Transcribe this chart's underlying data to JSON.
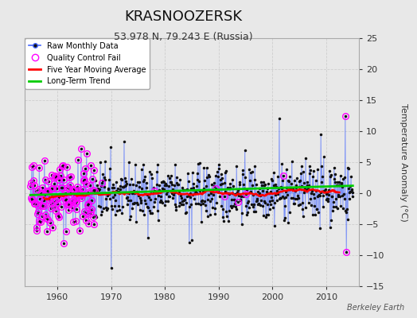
{
  "title": "KRASNOOZERSK",
  "subtitle": "53.978 N, 79.243 E (Russia)",
  "ylabel": "Temperature Anomaly (°C)",
  "credit": "Berkeley Earth",
  "xlim": [
    1954,
    2016
  ],
  "ylim": [
    -15,
    25
  ],
  "yticks": [
    -15,
    -10,
    -5,
    0,
    5,
    10,
    15,
    20,
    25
  ],
  "xticks": [
    1960,
    1970,
    1980,
    1990,
    2000,
    2010
  ],
  "bg_color": "#e8e8e8",
  "plot_bg_color": "#e8e8e8",
  "grid_color": "#cccccc",
  "title_fontsize": 13,
  "subtitle_fontsize": 9,
  "raw_line_color": "#4466ff",
  "raw_dot_color": "#111111",
  "qc_fail_color": "#ff00ff",
  "moving_avg_color": "#ff0000",
  "trend_color": "#00cc00",
  "seed": 42,
  "n_years_start": 1955,
  "n_years_end": 2014
}
